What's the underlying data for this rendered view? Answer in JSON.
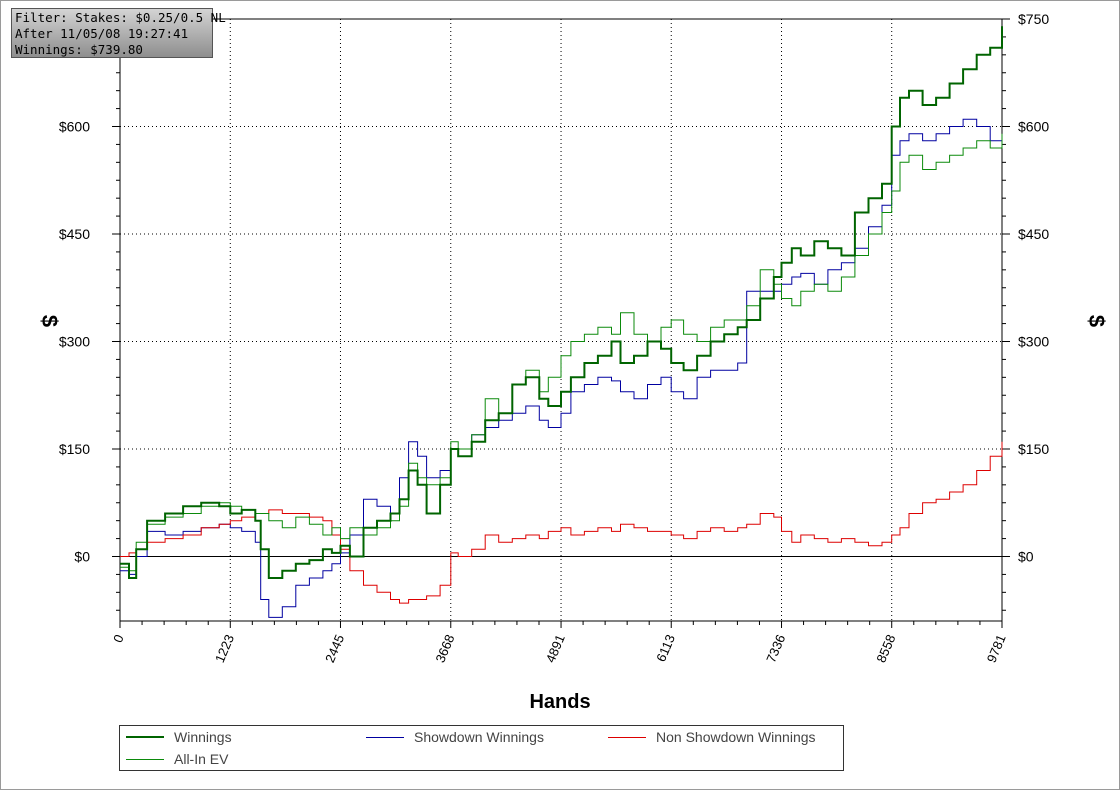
{
  "info_box": {
    "line1": "Filter: Stakes: $0.25/0.5 NL",
    "line2": "After 11/05/08 19:27:41",
    "line3": "Winnings: $739.80"
  },
  "chart_data": {
    "type": "line",
    "title": "",
    "xlabel": "Hands",
    "ylabel_left": "$",
    "ylabel_right": "$",
    "xlim": [
      0,
      9781
    ],
    "ylim": [
      -90,
      750
    ],
    "x_ticks": [
      "0",
      "1223",
      "2445",
      "3668",
      "4891",
      "6113",
      "7336",
      "8558",
      "9781"
    ],
    "x_tick_values": [
      0,
      1223,
      2445,
      3668,
      4891,
      6113,
      7336,
      8558,
      9781
    ],
    "y_ticks": [
      "$0",
      "$150",
      "$300",
      "$450",
      "$600",
      "$750"
    ],
    "y_tick_values": [
      0,
      150,
      300,
      450,
      600,
      750
    ],
    "grid": true,
    "legend_position": "bottom",
    "series": [
      {
        "name": "Winnings",
        "color": "#006400",
        "x": [
          0,
          100,
          180,
          300,
          500,
          700,
          900,
          1100,
          1223,
          1350,
          1500,
          1560,
          1650,
          1800,
          1950,
          2100,
          2250,
          2350,
          2445,
          2550,
          2700,
          2850,
          3000,
          3100,
          3200,
          3300,
          3400,
          3550,
          3668,
          3750,
          3900,
          4050,
          4200,
          4350,
          4500,
          4650,
          4750,
          4891,
          5000,
          5150,
          5300,
          5450,
          5550,
          5700,
          5850,
          6000,
          6113,
          6250,
          6400,
          6550,
          6700,
          6850,
          6950,
          7100,
          7250,
          7336,
          7450,
          7550,
          7700,
          7850,
          8000,
          8150,
          8300,
          8450,
          8558,
          8650,
          8750,
          8900,
          9050,
          9200,
          9350,
          9500,
          9650,
          9781
        ],
        "values": [
          -10,
          -30,
          10,
          50,
          60,
          70,
          75,
          70,
          60,
          65,
          50,
          10,
          -30,
          -20,
          -10,
          -5,
          10,
          5,
          15,
          0,
          40,
          50,
          60,
          80,
          120,
          100,
          60,
          100,
          150,
          140,
          160,
          190,
          200,
          240,
          250,
          220,
          210,
          230,
          250,
          270,
          280,
          300,
          270,
          280,
          300,
          290,
          270,
          260,
          280,
          300,
          310,
          320,
          330,
          360,
          390,
          410,
          430,
          420,
          440,
          430,
          420,
          480,
          500,
          520,
          600,
          640,
          650,
          630,
          640,
          660,
          680,
          700,
          710,
          740
        ]
      },
      {
        "name": "Showdown Winnings",
        "color": "#0000a0",
        "x": [
          0,
          100,
          180,
          300,
          500,
          700,
          900,
          1100,
          1223,
          1350,
          1500,
          1560,
          1650,
          1800,
          1950,
          2100,
          2250,
          2350,
          2445,
          2550,
          2700,
          2850,
          3000,
          3100,
          3200,
          3300,
          3400,
          3550,
          3668,
          3750,
          3900,
          4050,
          4200,
          4350,
          4500,
          4650,
          4750,
          4891,
          5000,
          5150,
          5300,
          5450,
          5550,
          5700,
          5850,
          6000,
          6113,
          6250,
          6400,
          6550,
          6700,
          6850,
          6950,
          7100,
          7250,
          7336,
          7450,
          7550,
          7700,
          7850,
          8000,
          8150,
          8300,
          8450,
          8558,
          8650,
          8750,
          8900,
          9050,
          9200,
          9350,
          9500,
          9650,
          9781
        ],
        "values": [
          -20,
          -25,
          0,
          35,
          30,
          35,
          40,
          45,
          40,
          35,
          20,
          -60,
          -85,
          -70,
          -40,
          -30,
          -20,
          -10,
          5,
          30,
          80,
          70,
          60,
          110,
          160,
          140,
          110,
          120,
          150,
          150,
          170,
          180,
          190,
          200,
          210,
          190,
          180,
          200,
          230,
          240,
          250,
          245,
          230,
          220,
          240,
          250,
          230,
          220,
          250,
          260,
          260,
          270,
          370,
          370,
          370,
          380,
          390,
          395,
          380,
          400,
          410,
          430,
          460,
          490,
          560,
          580,
          590,
          580,
          590,
          600,
          610,
          600,
          580,
          580
        ]
      },
      {
        "name": "Non Showdown Winnings",
        "color": "#dd0000",
        "x": [
          0,
          100,
          180,
          300,
          500,
          700,
          900,
          1100,
          1223,
          1350,
          1500,
          1650,
          1800,
          1950,
          2100,
          2250,
          2350,
          2445,
          2550,
          2700,
          2850,
          3000,
          3100,
          3200,
          3300,
          3400,
          3550,
          3668,
          3750,
          3900,
          4050,
          4200,
          4350,
          4500,
          4650,
          4750,
          4891,
          5000,
          5150,
          5300,
          5450,
          5550,
          5700,
          5850,
          6000,
          6113,
          6250,
          6400,
          6550,
          6700,
          6850,
          6950,
          7100,
          7250,
          7336,
          7450,
          7550,
          7700,
          7850,
          8000,
          8150,
          8300,
          8450,
          8558,
          8650,
          8750,
          8900,
          9050,
          9200,
          9350,
          9500,
          9650,
          9781
        ],
        "values": [
          0,
          5,
          10,
          20,
          25,
          30,
          40,
          45,
          50,
          55,
          60,
          65,
          60,
          60,
          55,
          50,
          30,
          10,
          -20,
          -40,
          -50,
          -60,
          -65,
          -60,
          -60,
          -55,
          -40,
          5,
          0,
          10,
          30,
          20,
          25,
          30,
          25,
          35,
          40,
          30,
          35,
          40,
          35,
          45,
          40,
          35,
          35,
          30,
          25,
          35,
          40,
          35,
          40,
          45,
          60,
          55,
          35,
          20,
          30,
          25,
          20,
          25,
          20,
          15,
          20,
          30,
          40,
          60,
          75,
          80,
          90,
          100,
          120,
          140,
          160
        ]
      },
      {
        "name": "All-In EV",
        "color": "#0b8a0b",
        "x": [
          0,
          100,
          180,
          300,
          500,
          700,
          900,
          1100,
          1223,
          1350,
          1500,
          1650,
          1800,
          1950,
          2100,
          2250,
          2350,
          2445,
          2550,
          2700,
          2850,
          3000,
          3100,
          3200,
          3300,
          3400,
          3550,
          3668,
          3750,
          3900,
          4050,
          4200,
          4350,
          4500,
          4650,
          4750,
          4891,
          5000,
          5150,
          5300,
          5450,
          5550,
          5700,
          5850,
          6000,
          6113,
          6250,
          6400,
          6550,
          6700,
          6850,
          6950,
          7100,
          7250,
          7336,
          7450,
          7550,
          7700,
          7850,
          8000,
          8150,
          8300,
          8450,
          8558,
          8650,
          8750,
          8900,
          9050,
          9200,
          9350,
          9500,
          9650,
          9781
        ],
        "values": [
          -15,
          -20,
          20,
          45,
          55,
          60,
          70,
          75,
          70,
          65,
          60,
          50,
          40,
          55,
          45,
          30,
          40,
          25,
          40,
          30,
          40,
          50,
          70,
          130,
          110,
          100,
          110,
          160,
          150,
          170,
          220,
          200,
          240,
          260,
          230,
          250,
          280,
          300,
          310,
          320,
          310,
          340,
          310,
          300,
          320,
          330,
          310,
          300,
          320,
          330,
          330,
          350,
          400,
          380,
          360,
          350,
          370,
          380,
          370,
          390,
          420,
          450,
          480,
          510,
          550,
          560,
          540,
          550,
          560,
          570,
          580,
          570,
          590
        ]
      }
    ]
  }
}
